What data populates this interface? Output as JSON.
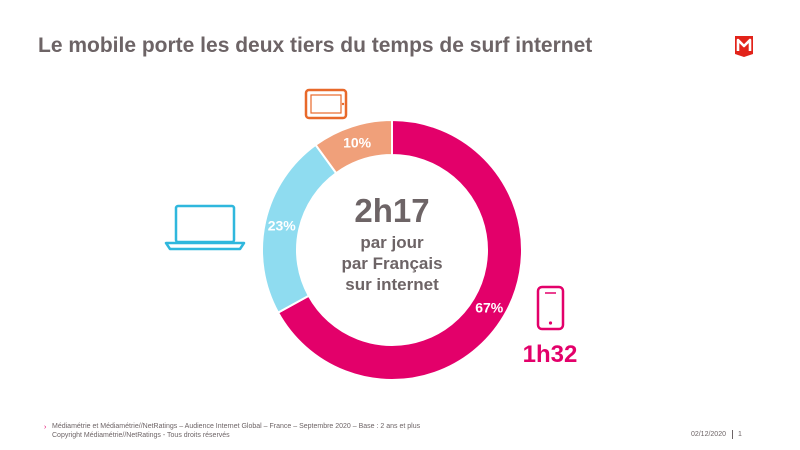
{
  "title": "Le mobile porte les deux tiers du temps de surf internet",
  "logo": {
    "letter": "M",
    "color": "#e2231a"
  },
  "chart_data": {
    "type": "pie",
    "title": "",
    "categories": [
      "Smartphone",
      "Ordinateur",
      "Tablette"
    ],
    "values": [
      67,
      23,
      10
    ],
    "labels": [
      "67%",
      "23%",
      "10%"
    ],
    "colors": [
      "#e3006a",
      "#8fdcf0",
      "#f0a07a"
    ],
    "icons": [
      "smartphone-icon",
      "laptop-icon",
      "tablet-icon"
    ],
    "center": {
      "value": "2h17",
      "line1": "par jour",
      "line2": "par Français",
      "line3": "sur internet"
    },
    "annotation": "1h32"
  },
  "colors": {
    "text": "#6d6466",
    "accent": "#e3006a",
    "tablet": "#e8692a",
    "laptop": "#2fb7dd"
  },
  "footer": {
    "source": "Médiamétrie et Médiamétrie//NetRatings – Audience Internet Global – France – Septembre 2020 – Base : 2 ans et plus",
    "copyright": "Copyright Médiamétrie//NetRatings - Tous droits réservés",
    "date": "02/12/2020",
    "page": "1"
  }
}
